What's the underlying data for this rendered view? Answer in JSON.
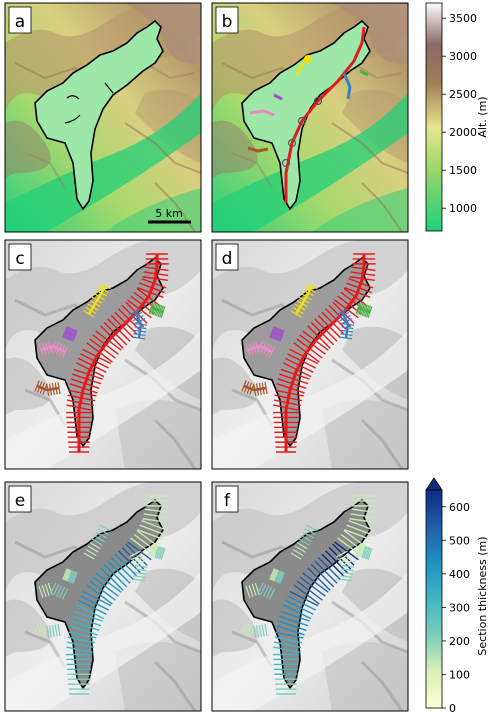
{
  "panels": {
    "a": {
      "letter": "a"
    },
    "b": {
      "letter": "b"
    },
    "c": {
      "letter": "c"
    },
    "d": {
      "letter": "d"
    },
    "e": {
      "letter": "e"
    },
    "f": {
      "letter": "f"
    }
  },
  "scalebar": {
    "label": "5 km"
  },
  "colorbar_altitude": {
    "label": "Alt. (m)",
    "ticks": [
      "1000",
      "1500",
      "2000",
      "2500",
      "3000",
      "3500"
    ],
    "tick_values": [
      1000,
      1500,
      2000,
      2500,
      3000,
      3500
    ],
    "range": [
      700,
      3700
    ],
    "colors": [
      "#1fd07a",
      "#9fd86a",
      "#e6e690",
      "#a07d55",
      "#7a5a55",
      "#ffffff"
    ]
  },
  "colorbar_thickness": {
    "label": "Section thickness (m)",
    "ticks": [
      "0",
      "100",
      "200",
      "300",
      "400",
      "500",
      "600"
    ],
    "tick_values": [
      0,
      100,
      200,
      300,
      400,
      500,
      600
    ],
    "range": [
      0,
      650
    ],
    "colors": [
      "#ffffd9",
      "#c7e9b4",
      "#7fcdbb",
      "#41b6c4",
      "#1d91c0",
      "#225ea8",
      "#0c2c84"
    ]
  },
  "flowline_colors": {
    "main": "#e41a1c",
    "yellow": "#f2e010",
    "purple": "#9f55c9",
    "pink": "#f088c8",
    "brown": "#a65628",
    "blue": "#3b7fc4",
    "green": "#4daf4a"
  }
}
